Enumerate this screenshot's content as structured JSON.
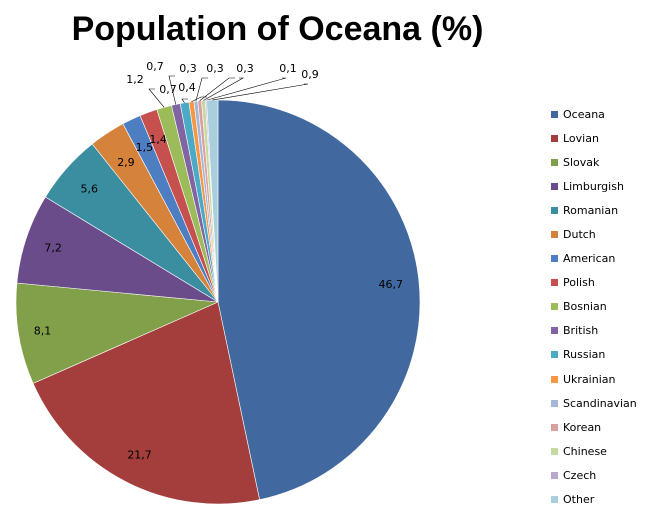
{
  "chart_data": {
    "type": "pie",
    "title": "Population of Oceana (%)",
    "legend_position": "right",
    "slices": [
      {
        "name": "Oceana",
        "value": 46.7,
        "label": "46,7",
        "color": "#4169A0"
      },
      {
        "name": "Lovian",
        "value": 21.7,
        "label": "21,7",
        "color": "#A33E3C"
      },
      {
        "name": "Slovak",
        "value": 8.1,
        "label": "8,1",
        "color": "#82A04A"
      },
      {
        "name": "Limburgish",
        "value": 7.2,
        "label": "7,2",
        "color": "#6A4C8A"
      },
      {
        "name": "Romanian",
        "value": 5.6,
        "label": "5,6",
        "color": "#3A8EA0"
      },
      {
        "name": "Dutch",
        "value": 2.9,
        "label": "2,9",
        "color": "#D5823A"
      },
      {
        "name": "American",
        "value": 1.5,
        "label": "1,5",
        "color": "#4D7EC2"
      },
      {
        "name": "Polish",
        "value": 1.4,
        "label": "1,4",
        "color": "#C5504E"
      },
      {
        "name": "Bosnian",
        "value": 1.2,
        "label": "1,2",
        "color": "#9CBC5A"
      },
      {
        "name": "British",
        "value": 0.7,
        "label": "0,7",
        "color": "#8065A2"
      },
      {
        "name": "Russian",
        "value": 0.7,
        "label": "0,7",
        "color": "#4BAAC6"
      },
      {
        "name": "Ukrainian",
        "value": 0.4,
        "label": "0,4",
        "color": "#F79646"
      },
      {
        "name": "Scandinavian",
        "value": 0.3,
        "label": "0,3",
        "color": "#A5B7D8"
      },
      {
        "name": "Korean",
        "value": 0.3,
        "label": "0,3",
        "color": "#D9A09F"
      },
      {
        "name": "Chinese",
        "value": 0.3,
        "label": "0,3",
        "color": "#C6D9A0"
      },
      {
        "name": "Czech",
        "value": 0.1,
        "label": "0,1",
        "color": "#B9A9CC"
      },
      {
        "name": "Other",
        "value": 0.9,
        "label": "0,9",
        "color": "#A9CFDC"
      }
    ]
  }
}
